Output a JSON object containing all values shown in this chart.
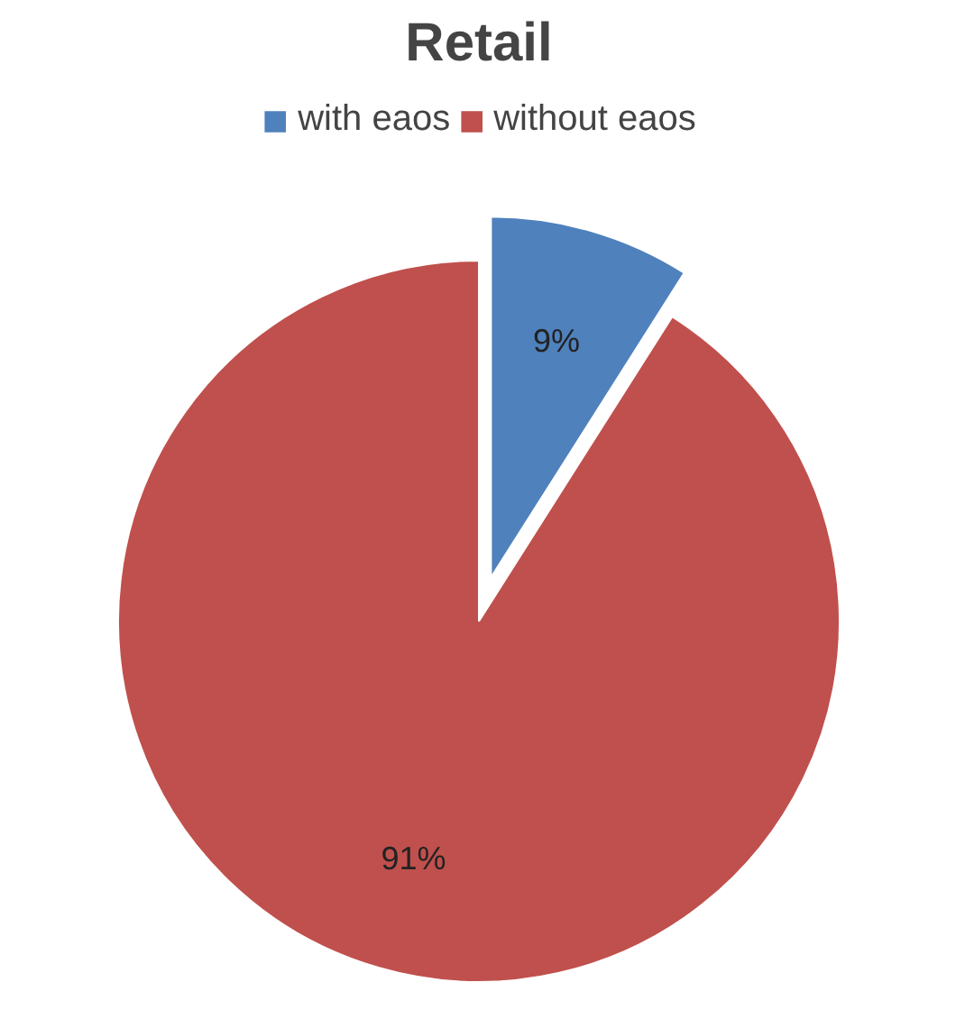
{
  "chart_data": {
    "type": "pie",
    "title": "Retail",
    "categories": [
      "with eaos",
      "without eaos"
    ],
    "values": [
      9,
      91
    ],
    "colors": [
      "#4f81bd",
      "#c0504d"
    ],
    "value_labels": [
      "9%",
      "91%"
    ],
    "legend": "top"
  }
}
